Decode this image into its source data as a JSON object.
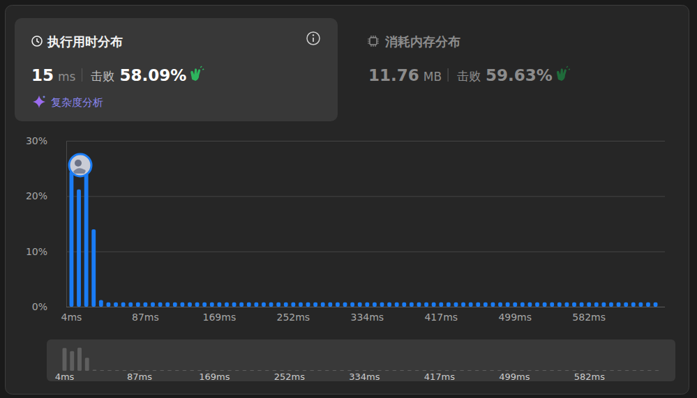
{
  "panels": [
    {
      "title": "执行用时分布",
      "value": 15,
      "unit": "ms",
      "beats_text": "击败",
      "beats": {
        "value": 58.09,
        "label": "58.09%"
      },
      "link": "复杂度分析"
    },
    {
      "title": "消耗内存分布",
      "value": 11.76,
      "unit": "MB",
      "beats_text": "击败",
      "beats": {
        "value": 59.63,
        "label": "59.63%"
      }
    }
  ],
  "chart_data": {
    "type": "bar",
    "categories": [
      "4ms",
      null,
      null,
      null,
      null,
      null,
      null,
      null,
      null,
      null,
      "87ms",
      null,
      null,
      null,
      null,
      null,
      null,
      null,
      null,
      null,
      "169ms",
      null,
      null,
      null,
      null,
      null,
      null,
      null,
      null,
      null,
      "252ms",
      null,
      null,
      null,
      null,
      null,
      null,
      null,
      null,
      null,
      "334ms",
      null,
      null,
      null,
      null,
      null,
      null,
      null,
      null,
      null,
      "417ms",
      null,
      null,
      null,
      null,
      null,
      null,
      null,
      null,
      null,
      "499ms",
      null,
      null,
      null,
      null,
      null,
      null,
      null,
      null,
      null,
      "582ms",
      null,
      null,
      null,
      null,
      null,
      null,
      null,
      null,
      null
    ],
    "values": [
      24.5,
      21.2,
      25,
      14,
      1.2,
      0.8,
      0.8,
      0.8,
      0.8,
      0.8,
      0.8,
      0.8,
      0.8,
      0.8,
      0.8,
      0.8,
      0.8,
      0.8,
      0.8,
      0.8,
      0.8,
      0.8,
      0.8,
      0.8,
      0.8,
      0.8,
      0.8,
      0.8,
      0.8,
      0.8,
      0.8,
      0.8,
      0.8,
      0.8,
      0.8,
      0.8,
      0.8,
      0.8,
      0.8,
      0.8,
      0.8,
      0.8,
      0.8,
      0.8,
      0.8,
      0.8,
      0.8,
      0.8,
      0.8,
      0.8,
      0.8,
      0.8,
      0.8,
      0.8,
      0.8,
      0.8,
      0.8,
      0.8,
      0.8,
      0.8,
      0.8,
      0.8,
      0.8,
      0.8,
      0.8,
      0.8,
      0.8,
      0.8,
      0.8,
      0.8,
      0.8,
      0.8,
      0.8,
      0.8,
      0.8,
      0.8,
      0.8,
      0.8,
      0.8,
      0.8
    ],
    "color": "#1a7cf5",
    "ylim": [
      0,
      30
    ],
    "yticks": [
      {
        "value": 0,
        "label": "0%"
      },
      {
        "value": 10,
        "label": "10%"
      },
      {
        "value": 20,
        "label": "20%"
      },
      {
        "value": 30,
        "label": "30%"
      }
    ],
    "grid": true
  }
}
